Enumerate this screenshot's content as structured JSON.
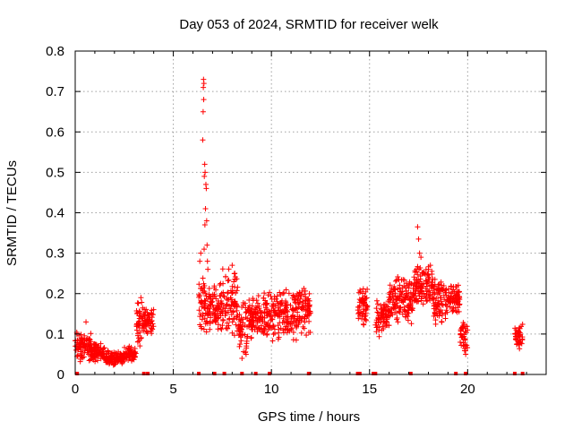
{
  "chart_data": {
    "type": "scatter",
    "title": "Day 053 of 2024, SRMTID for receiver welk",
    "xlabel": "GPS time / hours",
    "ylabel": "SRMTID / TECUs",
    "xlim": [
      0,
      24
    ],
    "ylim": [
      0,
      0.8
    ],
    "xticks": [
      0,
      5,
      10,
      15,
      20
    ],
    "yticks": [
      0,
      0.1,
      0.2,
      0.3,
      0.4,
      0.5,
      0.6,
      0.7,
      0.8
    ],
    "xtick_labels": [
      "0",
      "5",
      "10",
      "15",
      "20"
    ],
    "ytick_labels": [
      "0",
      "0.1",
      "0.2",
      "0.3",
      "0.4",
      "0.5",
      "0.6",
      "0.7",
      "0.8"
    ],
    "grid": true,
    "marker": "+",
    "series_color": "#ff0000",
    "series": [
      {
        "name": "SRMTID",
        "segments": [
          {
            "x": [
              0.0,
              0.4
            ],
            "y_range": [
              0.03,
              0.12
            ]
          },
          {
            "x": [
              0.4,
              0.8
            ],
            "y_range": [
              0.03,
              0.11
            ]
          },
          {
            "x": [
              0.8,
              1.5
            ],
            "y_range": [
              0.03,
              0.08
            ]
          },
          {
            "x": [
              1.5,
              2.5
            ],
            "y_range": [
              0.02,
              0.06
            ]
          },
          {
            "x": [
              2.5,
              3.1
            ],
            "y_range": [
              0.03,
              0.07
            ]
          },
          {
            "x": [
              3.1,
              3.5
            ],
            "y_range": [
              0.06,
              0.19
            ]
          },
          {
            "x": [
              3.5,
              4.0
            ],
            "y_range": [
              0.09,
              0.17
            ]
          },
          {
            "x": [
              6.3,
              6.6
            ],
            "y_range": [
              0.1,
              0.25
            ]
          },
          {
            "x": [
              6.6,
              7.5
            ],
            "y_range": [
              0.1,
              0.23
            ]
          },
          {
            "x": [
              7.5,
              8.3
            ],
            "y_range": [
              0.09,
              0.27
            ]
          },
          {
            "x": [
              8.3,
              8.8
            ],
            "y_range": [
              0.04,
              0.18
            ]
          },
          {
            "x": [
              8.8,
              9.6
            ],
            "y_range": [
              0.08,
              0.2
            ]
          },
          {
            "x": [
              9.6,
              10.4
            ],
            "y_range": [
              0.08,
              0.21
            ]
          },
          {
            "x": [
              10.4,
              11.4
            ],
            "y_range": [
              0.08,
              0.22
            ]
          },
          {
            "x": [
              11.4,
              12.0
            ],
            "y_range": [
              0.09,
              0.23
            ]
          },
          {
            "x": [
              14.4,
              14.9
            ],
            "y_range": [
              0.12,
              0.22
            ]
          },
          {
            "x": [
              15.3,
              16.0
            ],
            "y_range": [
              0.09,
              0.2
            ]
          },
          {
            "x": [
              16.0,
              17.2
            ],
            "y_range": [
              0.12,
              0.25
            ]
          },
          {
            "x": [
              17.2,
              18.2
            ],
            "y_range": [
              0.16,
              0.27
            ]
          },
          {
            "x": [
              18.2,
              19.0
            ],
            "y_range": [
              0.12,
              0.25
            ]
          },
          {
            "x": [
              19.0,
              19.6
            ],
            "y_range": [
              0.15,
              0.23
            ]
          },
          {
            "x": [
              19.6,
              20.0
            ],
            "y_range": [
              0.05,
              0.15
            ]
          },
          {
            "x": [
              22.4,
              22.8
            ],
            "y_range": [
              0.06,
              0.13
            ]
          }
        ],
        "spike_points": [
          {
            "x": 6.5,
            "y": 0.58
          },
          {
            "x": 6.52,
            "y": 0.65
          },
          {
            "x": 6.55,
            "y": 0.68
          },
          {
            "x": 6.53,
            "y": 0.71
          },
          {
            "x": 6.56,
            "y": 0.72
          },
          {
            "x": 6.54,
            "y": 0.73
          },
          {
            "x": 6.6,
            "y": 0.52
          },
          {
            "x": 6.62,
            "y": 0.5
          },
          {
            "x": 6.58,
            "y": 0.49
          },
          {
            "x": 6.66,
            "y": 0.47
          },
          {
            "x": 6.68,
            "y": 0.46
          },
          {
            "x": 6.64,
            "y": 0.41
          },
          {
            "x": 6.7,
            "y": 0.38
          },
          {
            "x": 6.61,
            "y": 0.37
          },
          {
            "x": 6.72,
            "y": 0.32
          },
          {
            "x": 6.57,
            "y": 0.31
          },
          {
            "x": 6.74,
            "y": 0.28
          },
          {
            "x": 6.76,
            "y": 0.26
          },
          {
            "x": 6.35,
            "y": 0.28
          },
          {
            "x": 6.4,
            "y": 0.3
          },
          {
            "x": 17.45,
            "y": 0.365
          },
          {
            "x": 17.5,
            "y": 0.335
          },
          {
            "x": 17.55,
            "y": 0.3
          },
          {
            "x": 17.62,
            "y": 0.29
          },
          {
            "x": 18.1,
            "y": 0.27
          },
          {
            "x": 18.0,
            "y": 0.26
          },
          {
            "x": 3.35,
            "y": 0.19
          },
          {
            "x": 0.55,
            "y": 0.13
          },
          {
            "x": 8.0,
            "y": 0.27
          },
          {
            "x": 8.5,
            "y": 0.04
          },
          {
            "x": 19.9,
            "y": 0.05
          }
        ],
        "baseline_markers_x": [
          0.1,
          3.5,
          3.7,
          6.3,
          7.1,
          7.6,
          8.5,
          9.2,
          9.9,
          11.9,
          14.4,
          14.5,
          15.2,
          15.3,
          17.1,
          19.4,
          19.9,
          22.4,
          22.8
        ]
      }
    ]
  }
}
